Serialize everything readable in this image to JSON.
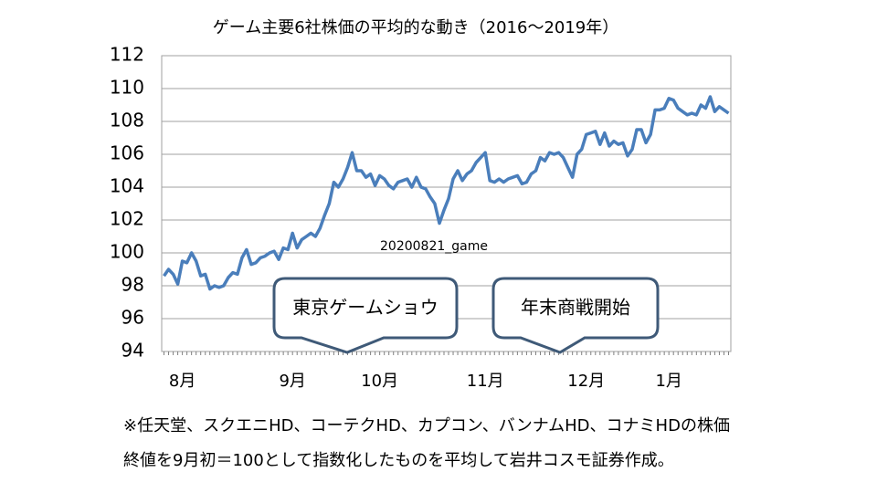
{
  "chart_data": {
    "type": "line",
    "title": "ゲーム主要6社株価の平均的な動き（2016～2019年）",
    "categories": [
      null,
      null,
      null,
      null,
      "8月",
      null,
      null,
      null,
      null,
      null,
      null,
      null,
      null,
      null,
      null,
      null,
      null,
      null,
      null,
      null,
      null,
      null,
      null,
      null,
      null,
      null,
      null,
      null,
      "9月",
      null,
      null,
      null,
      null,
      null,
      null,
      null,
      null,
      null,
      null,
      null,
      null,
      null,
      null,
      null,
      null,
      null,
      null,
      "10月",
      null,
      null,
      null,
      null,
      null,
      null,
      null,
      null,
      null,
      null,
      null,
      null,
      null,
      null,
      null,
      null,
      null,
      null,
      null,
      null,
      null,
      null,
      "11月",
      null,
      null,
      null,
      null,
      null,
      null,
      null,
      null,
      null,
      null,
      null,
      null,
      null,
      null,
      null,
      null,
      null,
      null,
      null,
      null,
      null,
      "12月",
      null,
      null,
      null,
      null,
      null,
      null,
      null,
      null,
      null,
      null,
      null,
      null,
      null,
      null,
      null,
      null,
      null,
      "1月",
      null,
      null,
      null,
      null,
      null,
      null,
      null,
      null,
      null,
      null,
      null,
      null,
      null
    ],
    "series": [
      {
        "color": "#4a7ebb",
        "values": [
          98.6,
          99.0,
          98.7,
          98.1,
          99.5,
          99.4,
          100.0,
          99.5,
          98.6,
          98.7,
          97.8,
          98.0,
          97.9,
          98.0,
          98.5,
          98.8,
          98.7,
          99.7,
          100.2,
          99.3,
          99.4,
          99.7,
          99.8,
          100.0,
          100.1,
          99.6,
          100.3,
          100.2,
          101.2,
          100.3,
          100.8,
          101.0,
          101.2,
          101.0,
          101.5,
          102.3,
          103.0,
          104.3,
          104.0,
          104.5,
          105.2,
          106.1,
          105.0,
          105.0,
          104.6,
          104.8,
          104.1,
          104.7,
          104.5,
          104.1,
          103.9,
          104.3,
          104.4,
          104.5,
          104.0,
          104.6,
          104.0,
          103.9,
          103.4,
          103.0,
          101.8,
          102.6,
          103.3,
          104.5,
          105.0,
          104.4,
          104.8,
          105.0,
          105.5,
          105.8,
          106.1,
          104.4,
          104.3,
          104.5,
          104.3,
          104.5,
          104.6,
          104.7,
          104.2,
          104.3,
          104.8,
          105.0,
          105.8,
          105.6,
          106.1,
          106.0,
          106.1,
          105.8,
          105.2,
          104.6,
          106.0,
          106.3,
          107.2,
          107.3,
          107.4,
          106.6,
          107.3,
          106.5,
          106.8,
          106.6,
          106.7,
          105.9,
          106.3,
          107.5,
          107.5,
          106.7,
          107.2,
          108.7,
          108.7,
          108.8,
          109.4,
          109.3,
          108.8,
          108.6,
          108.4,
          108.5,
          108.4,
          109.0,
          108.8,
          109.5,
          108.6,
          108.9,
          108.7,
          108.5
        ]
      }
    ],
    "ylim": [
      94,
      112
    ],
    "yticks": [
      94,
      96,
      98,
      100,
      102,
      104,
      106,
      108,
      110,
      112
    ],
    "grid": true,
    "annotations": [
      "20200821_game",
      "東京ゲームショウ",
      "年末商戦開始"
    ],
    "footnotes": [
      "※任天堂、スクエニHD、コーテクHD、カプコン、バンナムHD、コナミHDの株価",
      "終値を9月初＝100として指数化したものを平均して岩井コスモ証券作成。"
    ]
  }
}
